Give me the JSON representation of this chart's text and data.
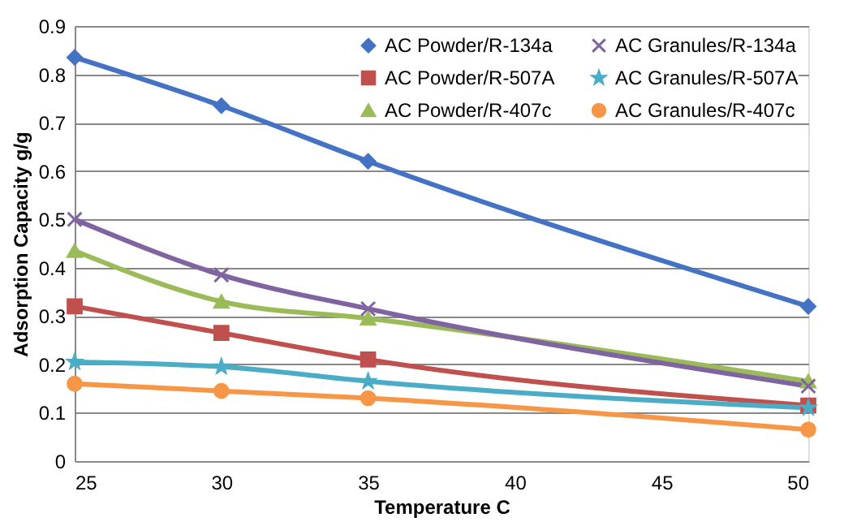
{
  "chart_data": {
    "type": "line",
    "xlabel": "Temperature C",
    "ylabel": "Adsorption Capacity  g/g",
    "x": [
      25,
      30,
      35,
      50
    ],
    "xlim": [
      25,
      50
    ],
    "xticks": [
      25,
      30,
      35,
      40,
      45,
      50
    ],
    "ylim": [
      0,
      0.9
    ],
    "yticks": [
      0,
      0.1,
      0.2,
      0.3,
      0.4,
      0.5,
      0.6,
      0.7,
      0.8,
      0.9
    ],
    "grid": "y",
    "legend": "top right",
    "series": [
      {
        "name": "AC Powder/R-134a",
        "color": "#4472c4",
        "marker": "diamond",
        "values": [
          0.835,
          0.735,
          0.62,
          0.32
        ]
      },
      {
        "name": "AC Powder/R-507A",
        "color": "#c0504d",
        "marker": "square",
        "values": [
          0.32,
          0.265,
          0.21,
          0.115
        ]
      },
      {
        "name": "AC Powder/R-407c",
        "color": "#9bbb59",
        "marker": "triangle",
        "values": [
          0.435,
          0.33,
          0.295,
          0.165
        ]
      },
      {
        "name": "AC Granules/R-134a",
        "color": "#8064a2",
        "marker": "cross",
        "values": [
          0.5,
          0.385,
          0.315,
          0.155
        ]
      },
      {
        "name": "AC Granules/R-507A",
        "color": "#4bacc6",
        "marker": "star",
        "values": [
          0.205,
          0.195,
          0.165,
          0.11
        ]
      },
      {
        "name": "AC Granules/R-407c",
        "color": "#f79646",
        "marker": "circle",
        "values": [
          0.16,
          0.145,
          0.13,
          0.065
        ]
      }
    ]
  }
}
